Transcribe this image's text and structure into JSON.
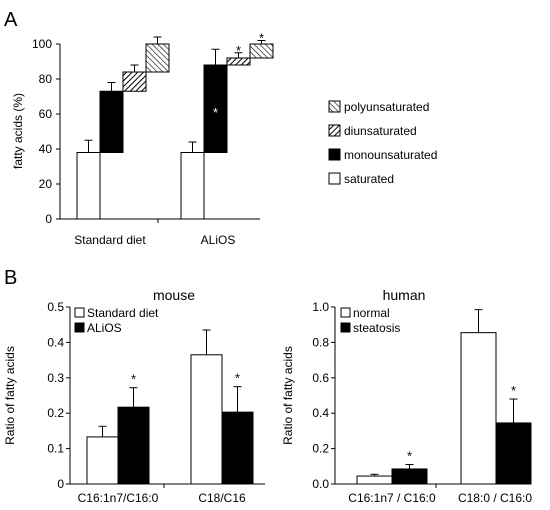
{
  "panels": {
    "a_letter": "A",
    "b_letter": "B"
  },
  "colors": {
    "black": "#000000",
    "white": "#ffffff",
    "hatch": "#000000"
  },
  "chart_data": [
    {
      "id": "A",
      "type": "bar",
      "stacked": "floating",
      "title": "",
      "ylabel": "fatty acids (%)",
      "xlabel": "",
      "ylim": [
        0,
        100
      ],
      "yticks": [
        0,
        20,
        40,
        60,
        80,
        100
      ],
      "categories": [
        "Standard diet",
        "ALiOS"
      ],
      "legend": [
        "polyunsaturated",
        "diunsaturated",
        "monounsaturated",
        "saturated"
      ],
      "legend_position": "right",
      "series": [
        {
          "name": "saturated",
          "fill": "white",
          "base": [
            0,
            0
          ],
          "top": [
            38,
            38
          ],
          "err": [
            7,
            6
          ],
          "sig": [
            false,
            false
          ]
        },
        {
          "name": "monounsaturated",
          "fill": "black",
          "base": [
            38,
            38
          ],
          "top": [
            73,
            88
          ],
          "err": [
            5,
            9
          ],
          "sig": [
            false,
            true
          ]
        },
        {
          "name": "diunsaturated",
          "fill": "hatch-diag",
          "base": [
            73,
            88
          ],
          "top": [
            84,
            92
          ],
          "err": [
            4,
            3
          ],
          "sig": [
            false,
            true
          ]
        },
        {
          "name": "polyunsaturated",
          "fill": "hatch-anti",
          "base": [
            84,
            92
          ],
          "top": [
            100,
            100
          ],
          "err": [
            4,
            2
          ],
          "sig": [
            false,
            true
          ]
        }
      ],
      "sig_label": "*"
    },
    {
      "id": "B-mouse",
      "type": "bar",
      "title": "mouse",
      "ylabel": "Ratio of fatty acids",
      "xlabel": "",
      "ylim": [
        0,
        0.5
      ],
      "yticks": [
        "0",
        "0.1",
        "0.2",
        "0.3",
        "0.4",
        "0.5"
      ],
      "categories": [
        "C16:1n7/C16:0",
        "C18/C16"
      ],
      "legend_position": "top-left",
      "series": [
        {
          "name": "Standard diet",
          "fill": "white",
          "values": [
            0.133,
            0.365
          ],
          "err": [
            0.03,
            0.07
          ],
          "sig": [
            false,
            false
          ]
        },
        {
          "name": "ALiOS",
          "fill": "black",
          "values": [
            0.217,
            0.203
          ],
          "err": [
            0.055,
            0.072
          ],
          "sig": [
            true,
            true
          ]
        }
      ],
      "sig_label": "*"
    },
    {
      "id": "B-human",
      "type": "bar",
      "title": "human",
      "ylabel": "Ratio of fatty acids",
      "xlabel": "",
      "ylim": [
        0,
        1.0
      ],
      "yticks": [
        "0.0",
        "0.2",
        "0.4",
        "0.6",
        "0.8",
        "1.0"
      ],
      "categories": [
        "C16:1n7 / C16:0",
        "C18:0 / C16:0"
      ],
      "legend_position": "top-left",
      "series": [
        {
          "name": "normal",
          "fill": "white",
          "values": [
            0.045,
            0.855
          ],
          "err": [
            0.01,
            0.13
          ],
          "sig": [
            false,
            false
          ]
        },
        {
          "name": "steatosis",
          "fill": "black",
          "values": [
            0.085,
            0.345
          ],
          "err": [
            0.025,
            0.135
          ],
          "sig": [
            true,
            true
          ]
        }
      ],
      "sig_label": "*"
    }
  ]
}
